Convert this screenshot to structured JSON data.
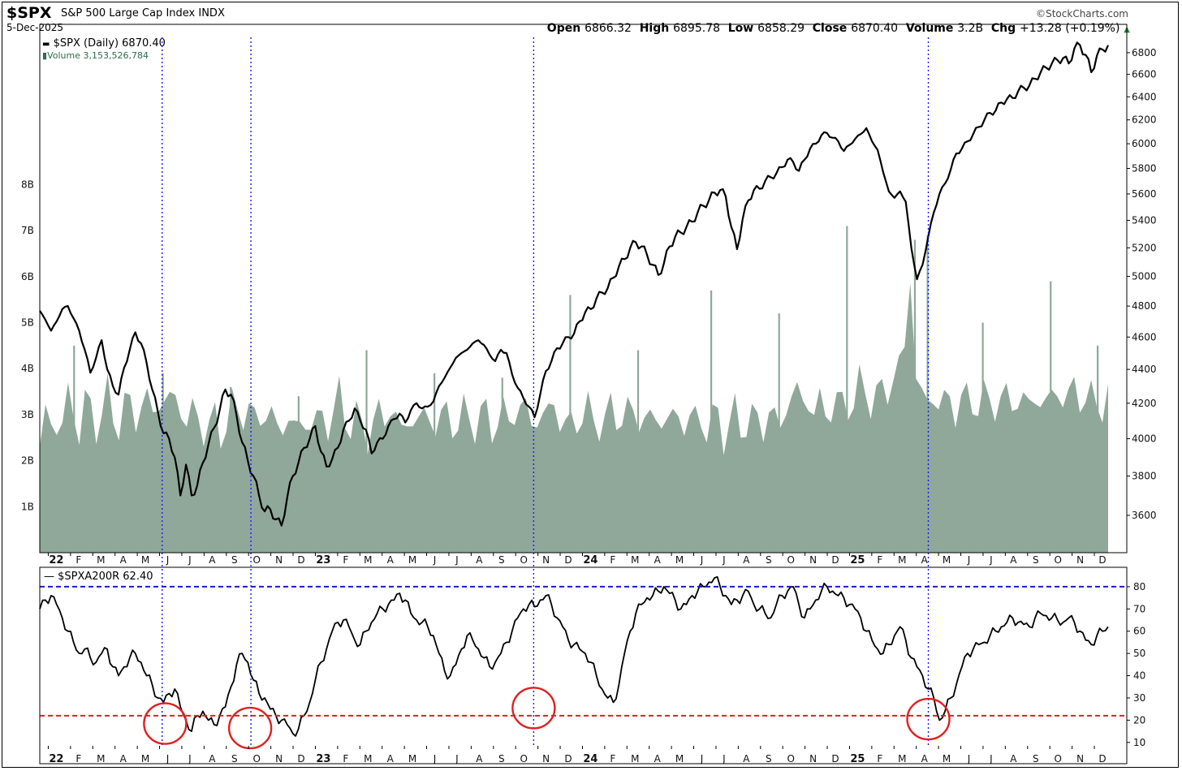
{
  "header": {
    "symbol": "$SPX",
    "name": "S&P 500 Large Cap Index",
    "exchange": "INDX",
    "date": "5-Dec-2025",
    "copyright": "©StockCharts.com",
    "open_label": "Open",
    "open": "6866.32",
    "high_label": "High",
    "high": "6895.78",
    "low_label": "Low",
    "low": "6858.29",
    "close_label": "Close",
    "close": "6870.40",
    "volume_label": "Volume",
    "volume": "3.2B",
    "chg_label": "Chg",
    "chg": "+13.28 (+0.19%)",
    "up_arrow_color": "#2e8b3a"
  },
  "legend": {
    "price": "$SPX (Daily) 6870.40",
    "volume": "Volume 3,153,526,784",
    "indicator": "$SPXA200R 62.40"
  },
  "colors": {
    "price_line": "#000000",
    "volume_fill": "#8fa89a",
    "marker_line": "#1a1aff",
    "upper_threshold": "#1a1acc",
    "lower_threshold": "#e02020",
    "circle": "#e02020"
  },
  "chart_data": [
    {
      "type": "line",
      "series": [
        {
          "values": [
            4770,
            4710,
            4640,
            4700,
            4780,
            4800,
            4720,
            4640,
            4520,
            4380,
            4470,
            4580,
            4400,
            4300,
            4250,
            4410,
            4520,
            4630,
            4560,
            4440,
            4280,
            4150,
            4030,
            4000,
            3900,
            3700,
            3860,
            3700,
            3750,
            3870,
            3970,
            4060,
            4160,
            4280,
            4250,
            4130,
            3980,
            3880,
            3800,
            3700,
            3620,
            3630,
            3580,
            3550,
            3690,
            3800,
            3870,
            3950,
            4000,
            4070,
            3930,
            3850,
            3890,
            3950,
            4050,
            4100,
            4170,
            4100,
            4050,
            3920,
            3980,
            4000,
            4070,
            4110,
            4140,
            4090,
            4160,
            4200,
            4170,
            4180,
            4210,
            4300,
            4350,
            4410,
            4470,
            4500,
            4520,
            4560,
            4580,
            4550,
            4490,
            4450,
            4520,
            4500,
            4370,
            4290,
            4230,
            4180,
            4120,
            4250,
            4390,
            4450,
            4530,
            4560,
            4600,
            4620,
            4700,
            4760,
            4780,
            4850,
            4890,
            4920,
            4990,
            5070,
            5120,
            5200,
            5240,
            5210,
            5150,
            5080,
            5010,
            5090,
            5210,
            5280,
            5310,
            5350,
            5390,
            5460,
            5510,
            5550,
            5610,
            5630,
            5580,
            5350,
            5190,
            5410,
            5550,
            5630,
            5640,
            5700,
            5730,
            5760,
            5810,
            5870,
            5850,
            5780,
            5870,
            5960,
            6000,
            6070,
            6090,
            6050,
            6020,
            5940,
            5990,
            6040,
            6080,
            6130,
            6020,
            5950,
            5770,
            5620,
            5570,
            5620,
            5540,
            5200,
            4980,
            5080,
            5280,
            5460,
            5600,
            5680,
            5790,
            5920,
            5960,
            6020,
            6080,
            6140,
            6200,
            6260,
            6280,
            6350,
            6380,
            6390,
            6450,
            6480,
            6500,
            6560,
            6620,
            6660,
            6700,
            6730,
            6750,
            6700,
            6840,
            6870,
            6780,
            6620,
            6770,
            6830,
            6870
          ],
          "color": "#000000"
        }
      ],
      "y_ticks": [
        3600,
        3800,
        4000,
        4200,
        4400,
        4600,
        4800,
        5000,
        5200,
        5400,
        5600,
        5800,
        6000,
        6200,
        6400,
        6600,
        6800
      ],
      "ylim": [
        3420,
        6945
      ],
      "y_scale": "log",
      "x_range": [
        "2022-01-03",
        "2025-12-05"
      ]
    },
    {
      "type": "bar",
      "series": [
        {
          "values": [
            2.3,
            3.1,
            2.7,
            2.8,
            2.9,
            3.3,
            3.0,
            2.8,
            3.2,
            3.0,
            2.9,
            3.1,
            3.3,
            3.0,
            2.9,
            3.1,
            3.2,
            3.0,
            3.2,
            3.3,
            3.1,
            3.2,
            3.3,
            3.4,
            3.3,
            3.1,
            2.9,
            3.0,
            2.9,
            2.8,
            2.7,
            2.8,
            2.7,
            2.9,
            3.0,
            3.1,
            3.2,
            3.0,
            2.8,
            3.1,
            3.0,
            2.9,
            2.8,
            2.7,
            2.9,
            2.8,
            2.7,
            2.8,
            2.9,
            2.8,
            2.9,
            2.9,
            3.1,
            3.3,
            3.0,
            2.9,
            2.8,
            2.7,
            2.7,
            2.8,
            2.9,
            3.0,
            3.2,
            2.8,
            2.7,
            2.9,
            2.8,
            2.9,
            3.0,
            2.9,
            2.8,
            2.9,
            3.0,
            2.9,
            2.8,
            2.9,
            3.0,
            2.9,
            2.8,
            3.0,
            2.9,
            2.8,
            2.9,
            3.0,
            3.1,
            3.0,
            3.2,
            2.9,
            2.8,
            3.0,
            3.1,
            3.2,
            2.9,
            2.8,
            2.7,
            2.9,
            3.1,
            3.0,
            2.8,
            3.0,
            2.8,
            3.0,
            3.1,
            3.0,
            2.9,
            3.1,
            3.0,
            2.8,
            2.9,
            3.0,
            2.8,
            2.9,
            3.0,
            2.9,
            2.8,
            3.0,
            2.8,
            2.9,
            2.8,
            2.8,
            2.9,
            2.7,
            2.8,
            2.9,
            2.8,
            2.9,
            2.8,
            2.9,
            2.8,
            3.0,
            2.9,
            2.8,
            3.1,
            3.4,
            3.6,
            3.2,
            3.3,
            3.1,
            3.2,
            3.0,
            3.3,
            3.2,
            3.1,
            3.4,
            3.3,
            3.5,
            3.6,
            3.4,
            3.3,
            3.5,
            3.6,
            3.8,
            4.0,
            4.5,
            6.0,
            3.8,
            3.5,
            3.2,
            3.4,
            3.3,
            3.2,
            3.3,
            3.2,
            3.3,
            3.2,
            3.4,
            3.3,
            3.2,
            3.3,
            3.4,
            3.2,
            3.3,
            3.4,
            3.3,
            3.2,
            3.3,
            3.4,
            3.2,
            3.3,
            3.4,
            3.5,
            3.4,
            3.3,
            3.6,
            3.5,
            3.3,
            3.2,
            3.4,
            3.3,
            3.2
          ],
          "color": "#8fa89a"
        }
      ],
      "y_ticks": [
        "1B",
        "2B",
        "3B",
        "4B",
        "5B",
        "6B",
        "7B",
        "8B"
      ],
      "spikes": [
        {
          "date": "2022-02-18",
          "value": 4.5
        },
        {
          "date": "2022-06-17",
          "value": 3.9
        },
        {
          "date": "2022-09-16",
          "value": 3.6
        },
        {
          "date": "2022-12-16",
          "value": 3.4
        },
        {
          "date": "2023-03-17",
          "value": 4.4
        },
        {
          "date": "2023-06-16",
          "value": 3.9
        },
        {
          "date": "2023-09-15",
          "value": 3.8
        },
        {
          "date": "2023-12-15",
          "value": 5.6
        },
        {
          "date": "2024-03-15",
          "value": 4.4
        },
        {
          "date": "2024-06-21",
          "value": 5.7
        },
        {
          "date": "2024-09-20",
          "value": 5.2
        },
        {
          "date": "2024-12-20",
          "value": 7.1
        },
        {
          "date": "2025-03-21",
          "value": 6.8
        },
        {
          "date": "2025-04-07",
          "value": 6.9
        },
        {
          "date": "2025-06-20",
          "value": 5.0
        },
        {
          "date": "2025-09-19",
          "value": 5.9
        },
        {
          "date": "2025-11-21",
          "value": 4.5
        }
      ],
      "ylim": [
        0,
        11.2
      ]
    },
    {
      "type": "line",
      "series": [
        {
          "name": "$SPXA200R",
          "values": [
            70,
            74,
            76,
            72,
            66,
            60,
            55,
            50,
            52,
            48,
            46,
            50,
            52,
            44,
            40,
            44,
            48,
            50,
            46,
            40,
            36,
            30,
            28,
            32,
            34,
            26,
            20,
            15,
            22,
            24,
            20,
            18,
            22,
            26,
            35,
            45,
            50,
            46,
            38,
            32,
            30,
            25,
            22,
            20,
            18,
            14,
            16,
            22,
            28,
            38,
            46,
            52,
            60,
            64,
            65,
            62,
            56,
            54,
            60,
            64,
            68,
            70,
            72,
            74,
            77,
            74,
            68,
            65,
            64,
            62,
            58,
            50,
            42,
            40,
            45,
            52,
            58,
            56,
            52,
            48,
            44,
            46,
            50,
            55,
            60,
            66,
            70,
            72,
            71,
            74,
            76,
            72,
            66,
            62,
            56,
            54,
            52,
            50,
            46,
            40,
            34,
            30,
            28,
            36,
            50,
            60,
            68,
            72,
            75,
            76,
            78,
            80,
            77,
            74,
            70,
            72,
            76,
            78,
            80,
            82,
            84,
            80,
            76,
            72,
            74,
            76,
            78,
            72,
            70,
            68,
            66,
            72,
            76,
            78,
            80,
            72,
            66,
            70,
            74,
            78,
            80,
            78,
            76,
            75,
            72,
            70,
            66,
            60,
            56,
            52,
            50,
            54,
            58,
            62,
            56,
            48,
            44,
            40,
            34,
            30,
            20,
            24,
            30,
            36,
            44,
            50,
            52,
            54,
            55,
            58,
            60,
            62,
            64,
            66,
            64,
            63,
            62,
            66,
            68,
            67,
            66,
            65,
            64,
            66,
            64,
            60,
            56,
            54,
            58,
            60,
            62
          ],
          "color": "#000000"
        }
      ],
      "y_ticks": [
        10,
        20,
        30,
        40,
        50,
        60,
        70,
        80
      ],
      "ylim": [
        7,
        88
      ],
      "thresholds": [
        {
          "value": 80,
          "color": "#1a1acc"
        },
        {
          "value": 22,
          "color": "#e02020"
        }
      ]
    }
  ],
  "x_axis": {
    "month_labels": [
      "22",
      "F",
      "M",
      "A",
      "M",
      "J",
      "J",
      "A",
      "S",
      "O",
      "N",
      "D",
      "23",
      "F",
      "M",
      "A",
      "M",
      "J",
      "J",
      "A",
      "S",
      "O",
      "N",
      "D",
      "24",
      "F",
      "M",
      "A",
      "M",
      "J",
      "J",
      "A",
      "S",
      "O",
      "N",
      "D",
      "25",
      "F",
      "M",
      "A",
      "M",
      "J",
      "J",
      "A",
      "S",
      "O",
      "N",
      "D"
    ]
  },
  "annotations": {
    "marker_dates": [
      "2022-06-16",
      "2022-10-13",
      "2023-10-27",
      "2025-04-08"
    ],
    "circled_lows": [
      {
        "date": "2022-06-20",
        "value": 17
      },
      {
        "date": "2022-10-12",
        "value": 15
      },
      {
        "date": "2023-10-27",
        "value": 24
      },
      {
        "date": "2025-04-08",
        "value": 19
      }
    ]
  }
}
